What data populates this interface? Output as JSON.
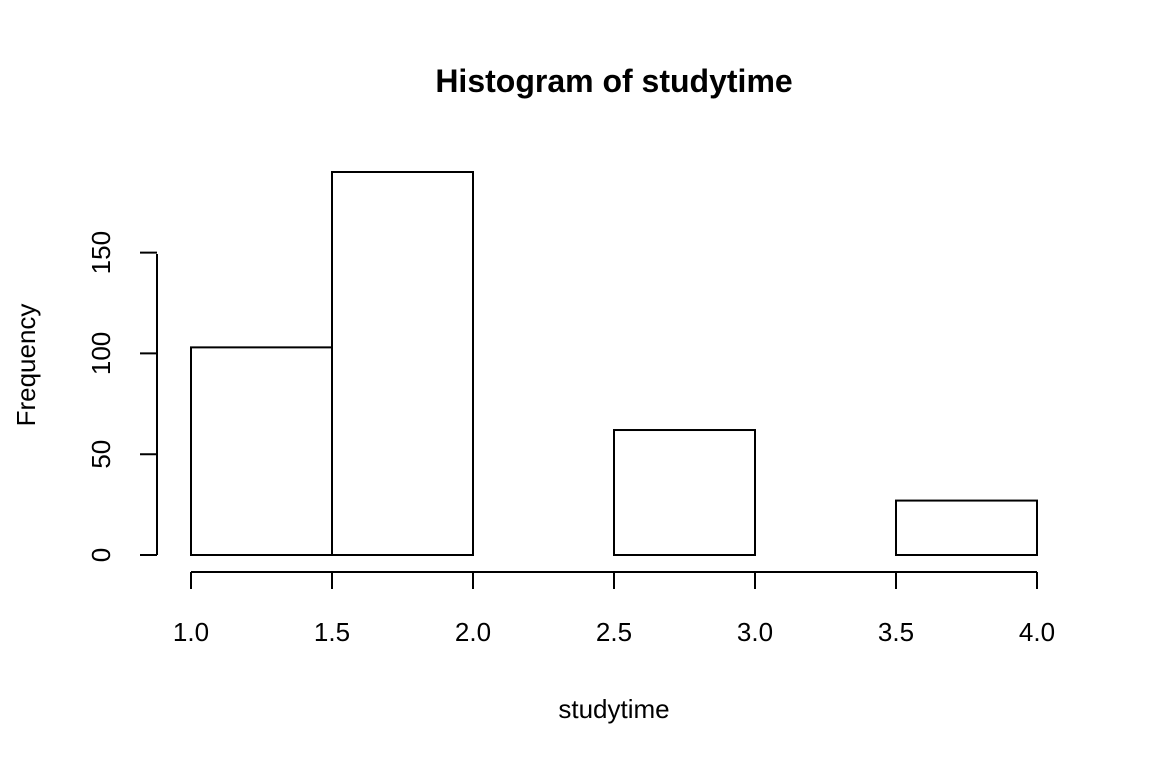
{
  "chart_data": {
    "type": "bar",
    "subtype": "histogram",
    "title": "Histogram of studytime",
    "xlabel": "studytime",
    "ylabel": "Frequency",
    "bins": [
      {
        "start": 1.0,
        "end": 1.5,
        "count": 103
      },
      {
        "start": 1.5,
        "end": 2.0,
        "count": 190
      },
      {
        "start": 2.0,
        "end": 2.5,
        "count": 0
      },
      {
        "start": 2.5,
        "end": 3.0,
        "count": 62
      },
      {
        "start": 3.0,
        "end": 3.5,
        "count": 0
      },
      {
        "start": 3.5,
        "end": 4.0,
        "count": 27
      }
    ],
    "xlim": [
      1.0,
      4.0
    ],
    "ylim": [
      0,
      190
    ],
    "xticks": [
      "1.0",
      "1.5",
      "2.0",
      "2.5",
      "3.0",
      "3.5",
      "4.0"
    ],
    "yticks": [
      "0",
      "50",
      "100",
      "150"
    ],
    "grid": false,
    "bar_fill": "#ffffff",
    "bar_stroke": "#000000"
  }
}
